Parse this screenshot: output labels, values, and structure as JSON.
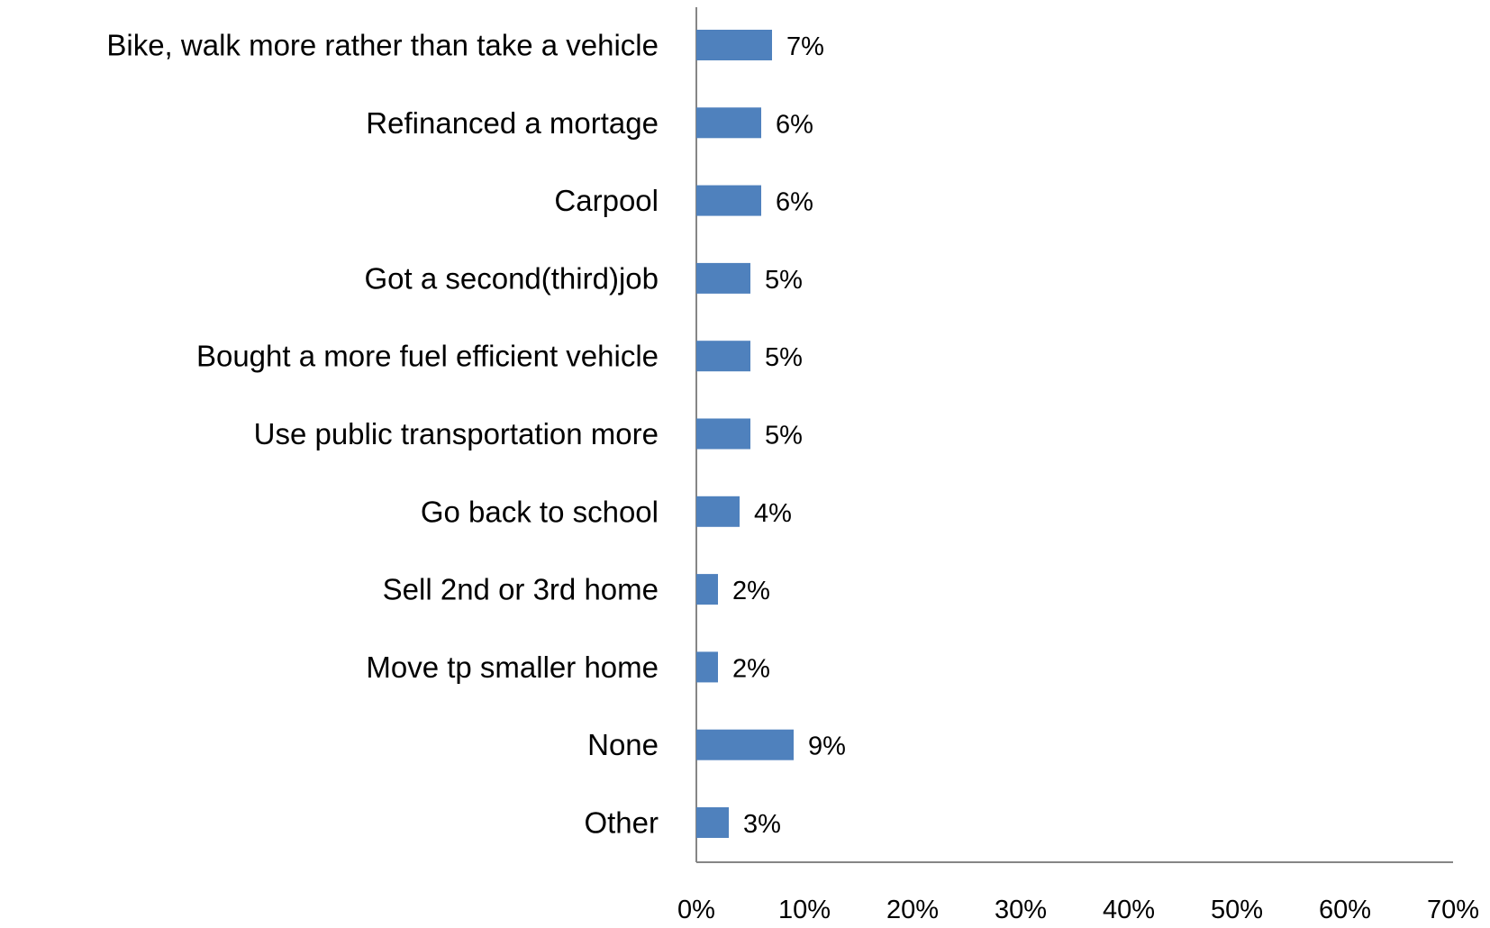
{
  "chart_data": {
    "type": "bar",
    "orientation": "horizontal",
    "categories": [
      "Bike, walk more rather than take a vehicle",
      "Refinanced a mortage",
      "Carpool",
      "Got a second(third)job",
      "Bought a more fuel efficient vehicle",
      "Use public transportation more",
      "Go back to school",
      "Sell 2nd or 3rd home",
      "Move tp smaller home",
      "None",
      "Other"
    ],
    "values": [
      7,
      6,
      6,
      5,
      5,
      5,
      4,
      2,
      2,
      9,
      3
    ],
    "value_labels": [
      "7%",
      "6%",
      "6%",
      "5%",
      "5%",
      "5%",
      "4%",
      "2%",
      "2%",
      "9%",
      "3%"
    ],
    "xlim": [
      0,
      70
    ],
    "x_ticks": [
      "0%",
      "10%",
      "20%",
      "30%",
      "40%",
      "50%",
      "60%",
      "70%"
    ],
    "bar_color": "#4F81BD",
    "grid": false,
    "legend": "none"
  }
}
